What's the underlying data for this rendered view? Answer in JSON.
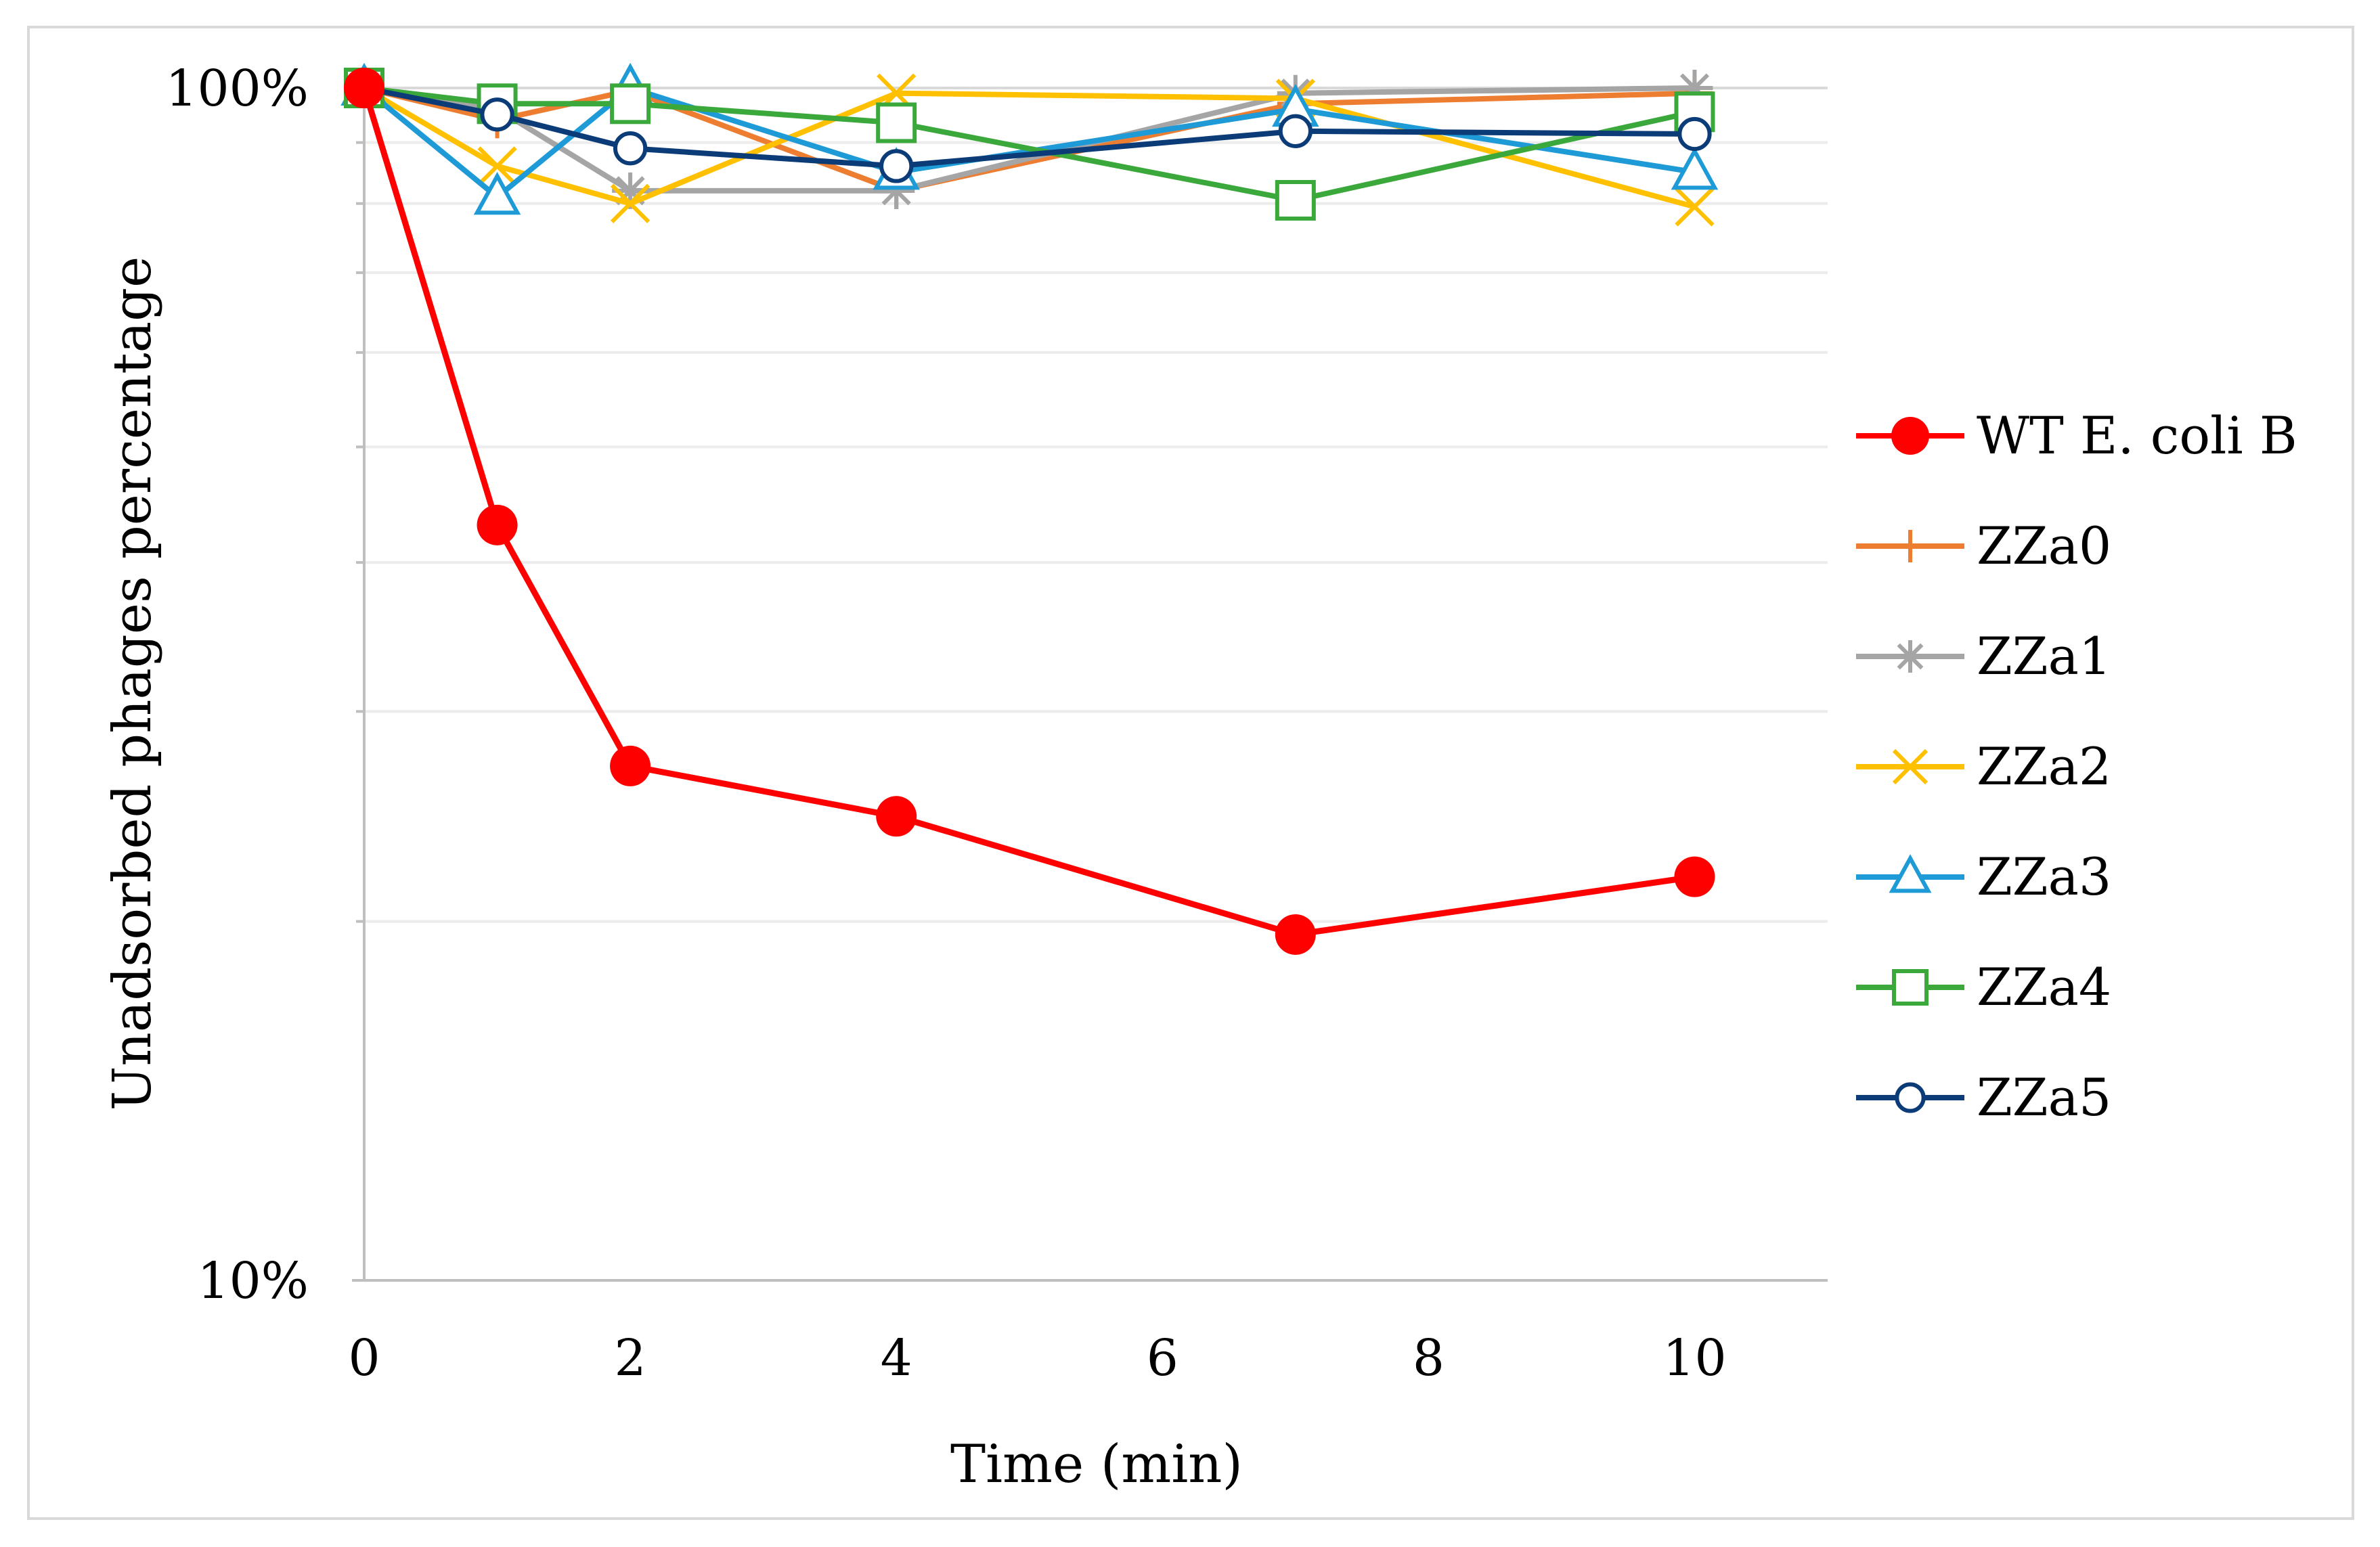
{
  "chart_data": {
    "type": "line",
    "xlabel": "Time (min)",
    "ylabel": "Unadsorbed phages percentage",
    "x": [
      0,
      1,
      2,
      4,
      7,
      10
    ],
    "xlim": [
      0,
      11
    ],
    "xticks": [
      0,
      2,
      4,
      6,
      8,
      10
    ],
    "yscale": "log",
    "ylim": [
      10,
      100
    ],
    "yticks": [
      {
        "value": 10,
        "label": "10%"
      },
      {
        "value": 100,
        "label": "100%"
      }
    ],
    "minor_y_gridlines": [
      20,
      30,
      40,
      50,
      60,
      70,
      80,
      90
    ],
    "grid": "horizontal",
    "legend_position": "right",
    "series": [
      {
        "name": "WT E. coli B",
        "color": "#ff0000",
        "marker": "filled-circle",
        "values": [
          100,
          43,
          27,
          24.5,
          19.5,
          21.8
        ]
      },
      {
        "name": "ZZa0",
        "color": "#ed7d31",
        "marker": "plus",
        "values": [
          100,
          94,
          99.5,
          82,
          97,
          99
        ]
      },
      {
        "name": "ZZa1",
        "color": "#a5a5a5",
        "marker": "asterisk",
        "values": [
          100,
          96,
          82,
          82,
          99,
          100
        ]
      },
      {
        "name": "ZZa2",
        "color": "#ffc000",
        "marker": "cross",
        "values": [
          100,
          86,
          80,
          99,
          98,
          79.5
        ]
      },
      {
        "name": "ZZa3",
        "color": "#1e9bd7",
        "marker": "open-triangle",
        "values": [
          100,
          81,
          100,
          85,
          96,
          85
        ]
      },
      {
        "name": "ZZa4",
        "color": "#3aa83a",
        "marker": "open-square",
        "values": [
          100,
          97,
          97,
          93.5,
          80.5,
          95.5
        ]
      },
      {
        "name": "ZZa5",
        "color": "#0b3c78",
        "marker": "open-circle",
        "values": [
          100,
          95,
          89,
          86,
          92,
          91.5
        ]
      }
    ]
  }
}
